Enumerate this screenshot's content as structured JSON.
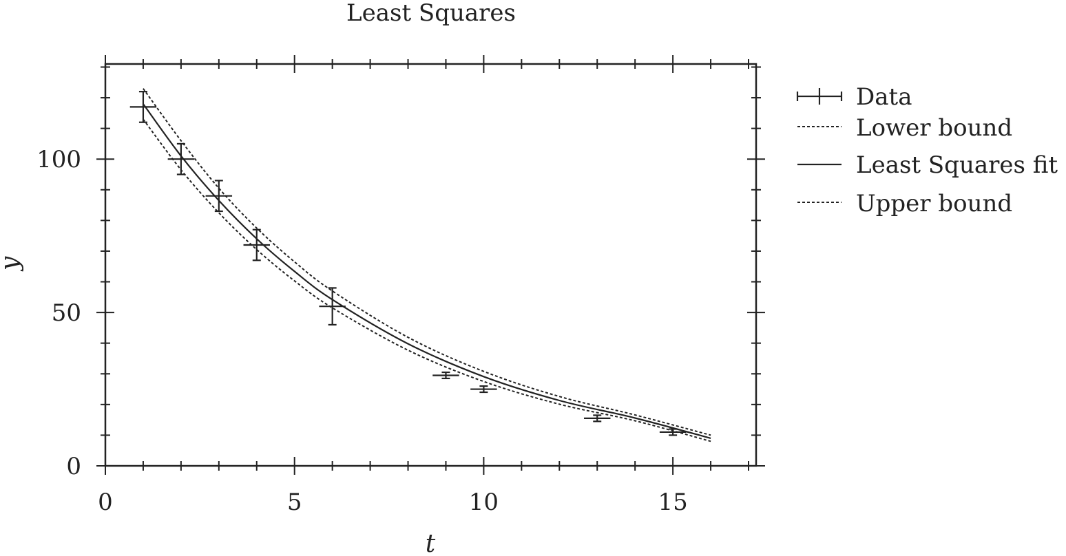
{
  "chart_data": {
    "type": "line",
    "title": "Least Squares",
    "xlabel": "t",
    "ylabel": "y",
    "xlim": [
      0,
      17.2
    ],
    "ylim": [
      0,
      131
    ],
    "grid": false,
    "legend_position": "outside-right",
    "x_ticks": [
      0,
      5,
      10,
      15
    ],
    "y_ticks": [
      0,
      50,
      100
    ],
    "x_tick_labels": [
      "0",
      "5",
      "10",
      "15"
    ],
    "y_tick_labels": [
      "0",
      "50",
      "100"
    ],
    "data": {
      "name": "Data",
      "points": [
        {
          "t": 1,
          "y": 117,
          "yerr": 5,
          "xerr": 0.35
        },
        {
          "t": 2,
          "y": 100,
          "yerr": 5,
          "xerr": 0.35
        },
        {
          "t": 3,
          "y": 88,
          "yerr": 5,
          "xerr": 0.35
        },
        {
          "t": 4,
          "y": 72,
          "yerr": 5,
          "xerr": 0.35
        },
        {
          "t": 6,
          "y": 52,
          "yerr": 6,
          "xerr": 0.35
        },
        {
          "t": 9,
          "y": 29.5,
          "yerr": 1,
          "xerr": 0.35
        },
        {
          "t": 10,
          "y": 25,
          "yerr": 1,
          "xerr": 0.35
        },
        {
          "t": 13,
          "y": 15.5,
          "yerr": 1,
          "xerr": 0.35
        },
        {
          "t": 15,
          "y": 11,
          "yerr": 1,
          "xerr": 0.35
        }
      ]
    },
    "series": [
      {
        "name": "Lower bound",
        "style": "dotted",
        "x": [
          1,
          2,
          3,
          4,
          5,
          6,
          8,
          10,
          12,
          14,
          16
        ],
        "y": [
          113,
          96.5,
          82.5,
          70.5,
          60.3,
          51.5,
          37.7,
          27.5,
          20.1,
          14.7,
          8.0
        ]
      },
      {
        "name": "Least Squares fit",
        "style": "solid",
        "x": [
          1,
          2,
          3,
          4,
          5,
          6,
          8,
          10,
          12,
          14,
          16
        ],
        "y": [
          118,
          101,
          86.5,
          74,
          63.4,
          54.2,
          39.8,
          29.1,
          21.3,
          15.6,
          9.0
        ]
      },
      {
        "name": "Upper bound",
        "style": "dotted",
        "x": [
          1,
          2,
          3,
          4,
          5,
          6,
          8,
          10,
          12,
          14,
          16
        ],
        "y": [
          123,
          106,
          90.5,
          77.5,
          66.5,
          57.0,
          41.9,
          30.8,
          22.6,
          16.6,
          10.0
        ]
      }
    ],
    "legend": [
      "Data",
      "Lower bound",
      "Least Squares fit",
      "Upper bound"
    ],
    "colors": {
      "line": "#222222",
      "background": "#ffffff"
    }
  }
}
